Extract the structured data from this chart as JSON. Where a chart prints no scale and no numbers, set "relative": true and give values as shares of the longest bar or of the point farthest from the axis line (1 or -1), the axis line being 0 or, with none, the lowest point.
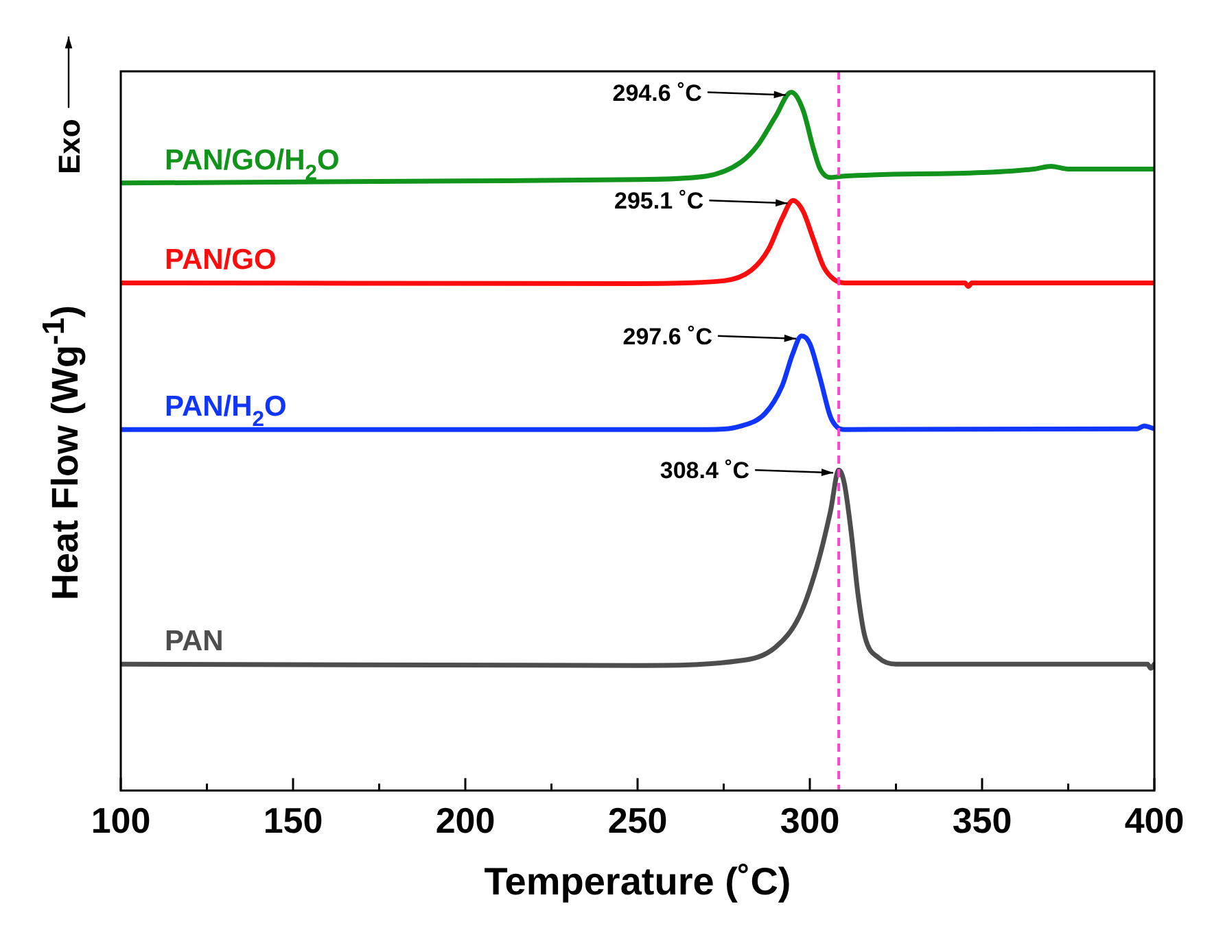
{
  "chart_data": {
    "type": "line",
    "relative": true,
    "xlabel": "Temperature (˚C)",
    "ylabel": "Heat Flow (Wg$^{-1}$)",
    "xlim": [
      100,
      400
    ],
    "xticks": [
      100,
      {
        "value": 125,
        "label": null
      },
      150,
      {
        "value": 175,
        "label": null
      },
      200,
      {
        "value": 225,
        "label": null
      },
      250,
      {
        "value": 275,
        "label": null
      },
      300,
      {
        "value": 325,
        "label": null
      },
      350,
      {
        "value": 375,
        "label": null
      },
      400
    ],
    "grid": false,
    "legend": false,
    "marker": "none",
    "line_style": "solid",
    "series": [
      {
        "name": "PAN/GO/H$_{2}$O",
        "color": "#12931b",
        "x": [
          100,
          200,
          250,
          270,
          280,
          285,
          290,
          294.6,
          298,
          301,
          303,
          306,
          310,
          350,
          365,
          370,
          375,
          400
        ],
        "values": [
          0.87,
          0.873,
          0.875,
          0.88,
          0.9,
          0.925,
          0.965,
          1.0,
          0.975,
          0.92,
          0.89,
          0.878,
          0.88,
          0.885,
          0.89,
          0.894,
          0.89,
          0.89
        ]
      },
      {
        "name": "PAN/GO",
        "color": "#fb0d0d",
        "x": [
          100,
          250,
          275,
          283,
          288,
          292,
          295.1,
          298,
          301,
          304,
          307,
          310,
          345,
          346,
          347,
          400
        ],
        "values": [
          0.727,
          0.726,
          0.73,
          0.745,
          0.775,
          0.82,
          0.845,
          0.83,
          0.79,
          0.75,
          0.732,
          0.727,
          0.727,
          0.722,
          0.727,
          0.727
        ]
      },
      {
        "name": "PAN/H$_{2}$O",
        "color": "#1136fb",
        "x": [
          100,
          270,
          280,
          287,
          292,
          295,
          297.6,
          300,
          303,
          306,
          308,
          310,
          395,
          397,
          400
        ],
        "values": [
          0.517,
          0.517,
          0.522,
          0.54,
          0.58,
          0.625,
          0.651,
          0.64,
          0.59,
          0.535,
          0.52,
          0.517,
          0.518,
          0.522,
          0.518
        ]
      },
      {
        "name": "PAN",
        "color": "#4d4d4d",
        "x": [
          100,
          250,
          280,
          290,
          297,
          302,
          306,
          308.4,
          310,
          312,
          314,
          316,
          320,
          325,
          398,
          399,
          400
        ],
        "values": [
          0.181,
          0.179,
          0.186,
          0.205,
          0.25,
          0.32,
          0.4,
          0.459,
          0.44,
          0.37,
          0.28,
          0.22,
          0.19,
          0.181,
          0.181,
          0.175,
          0.181
        ]
      }
    ],
    "ref_lines": [
      {
        "axis": "x",
        "value": 308.4,
        "color": "#ff44cc",
        "line_style": "dashed"
      }
    ],
    "annotations": [
      {
        "text": "294.6 ˚C",
        "x": 294.6,
        "y": 1.0
      },
      {
        "text": "295.1 ˚C",
        "x": 295.1,
        "y": 0.845
      },
      {
        "text": "297.6 ˚C",
        "x": 297.6,
        "y": 0.651
      },
      {
        "text": "308.4 ˚C",
        "x": 308.4,
        "y": 0.459
      },
      "Exo"
    ]
  }
}
